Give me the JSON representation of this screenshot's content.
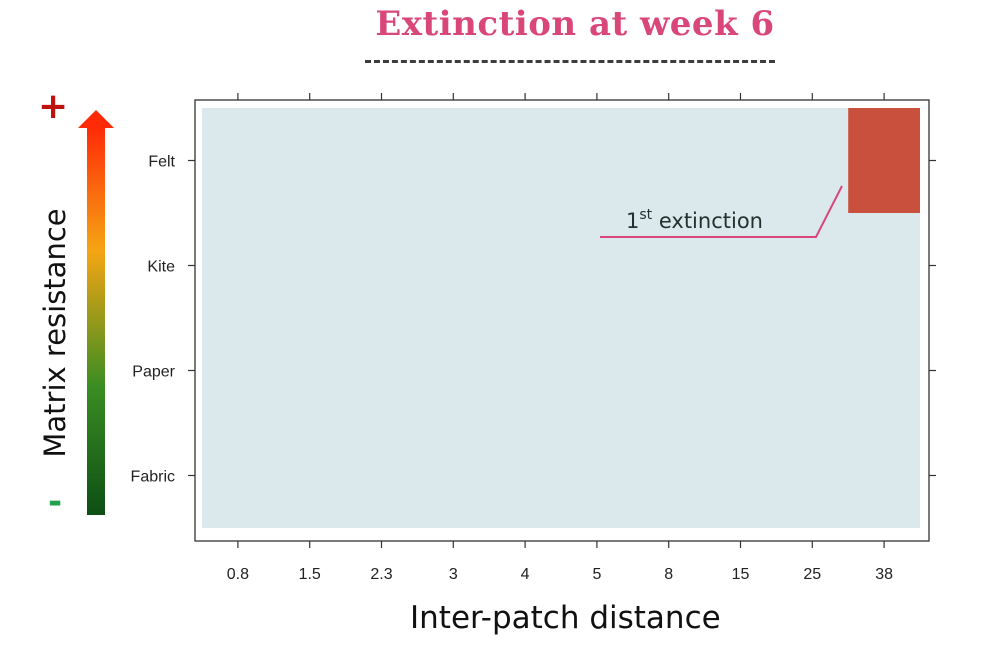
{
  "chart_data": {
    "type": "heatmap",
    "title": "Extinction at week 6",
    "xlabel": "Inter-patch distance",
    "ylabel": "Matrix resistance",
    "x_categories": [
      "0.8",
      "1.5",
      "2.3",
      "3",
      "4",
      "5",
      "8",
      "15",
      "25",
      "38"
    ],
    "y_categories": [
      "Felt",
      "Kite",
      "Paper",
      "Fabric"
    ],
    "cells": [
      {
        "x": "38",
        "y": "Felt",
        "value": "extinct"
      }
    ],
    "colors": {
      "background_cell": "#dbe9ec",
      "extinct_cell": "#c8503d",
      "title": "#d9477a",
      "annotation_line": "#d9477a"
    },
    "resistance_arrow": {
      "high_label": "+",
      "low_label": "-",
      "gradient": [
        "#0d4f15",
        "#3a8d22",
        "#f5a513",
        "#ff2a08"
      ]
    },
    "annotation": {
      "text_main": "1",
      "text_sup": "st",
      "text_rest": " extinction"
    }
  }
}
